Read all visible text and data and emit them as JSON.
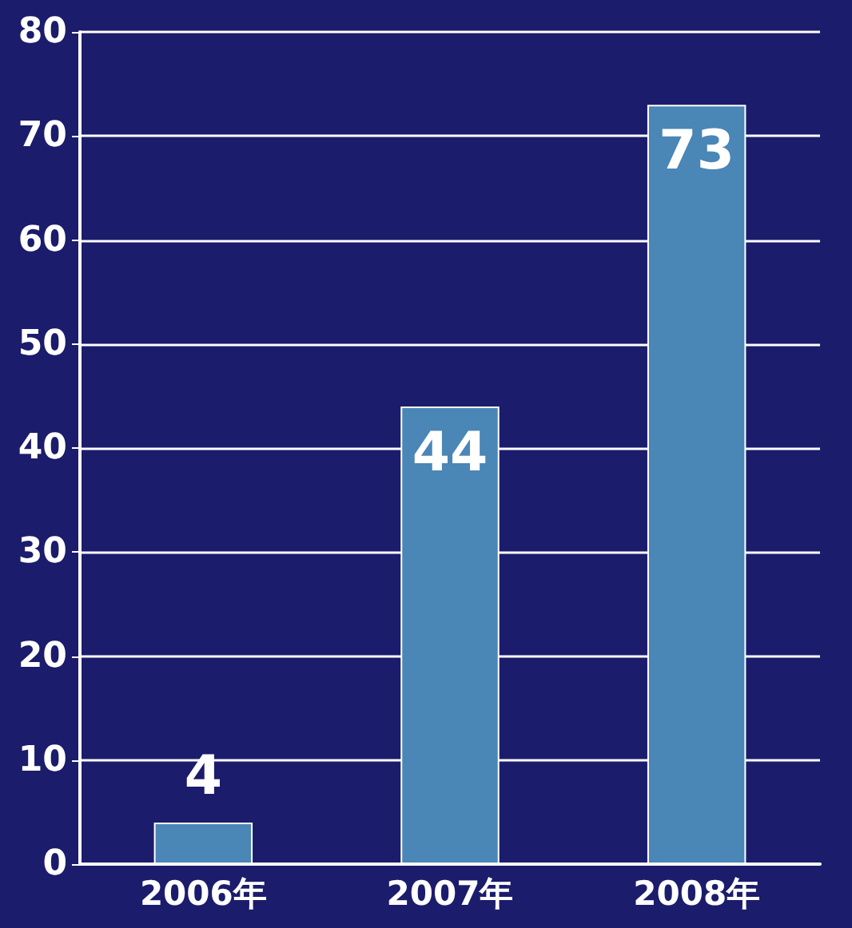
{
  "chart_data": {
    "type": "bar",
    "categories": [
      "2006年",
      "2007年",
      "2008年"
    ],
    "values": [
      4,
      44,
      73
    ],
    "color": "#4a86b6",
    "ylim": [
      0,
      80
    ],
    "yticks": [
      0,
      10,
      20,
      30,
      40,
      50,
      60,
      70,
      80
    ],
    "grid": "y",
    "data_labels": true
  }
}
